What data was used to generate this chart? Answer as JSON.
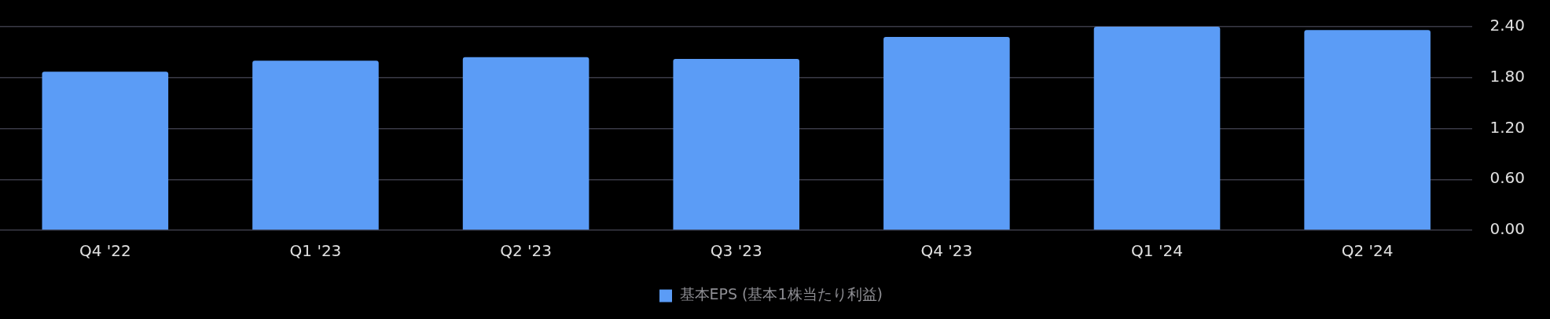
{
  "chart_data": {
    "type": "bar",
    "categories": [
      "Q4 '22",
      "Q1 '23",
      "Q2 '23",
      "Q3 '23",
      "Q4 '23",
      "Q1 '24",
      "Q2 '24"
    ],
    "series": [
      {
        "name": "基本EPS (基本1株当たり利益)",
        "color": "#5b9cf6",
        "values": [
          1.87,
          2.0,
          2.04,
          2.02,
          2.28,
          2.4,
          2.36
        ]
      }
    ],
    "ylim": [
      0,
      2.4
    ],
    "yticks": [
      {
        "value": 0,
        "label": "0.00"
      },
      {
        "value": 0.6,
        "label": "0.60"
      },
      {
        "value": 1.2,
        "label": "1.20"
      },
      {
        "value": 1.8,
        "label": "1.80"
      },
      {
        "value": 2.4,
        "label": "2.40"
      }
    ],
    "grid": "y",
    "legend": "bottom"
  }
}
